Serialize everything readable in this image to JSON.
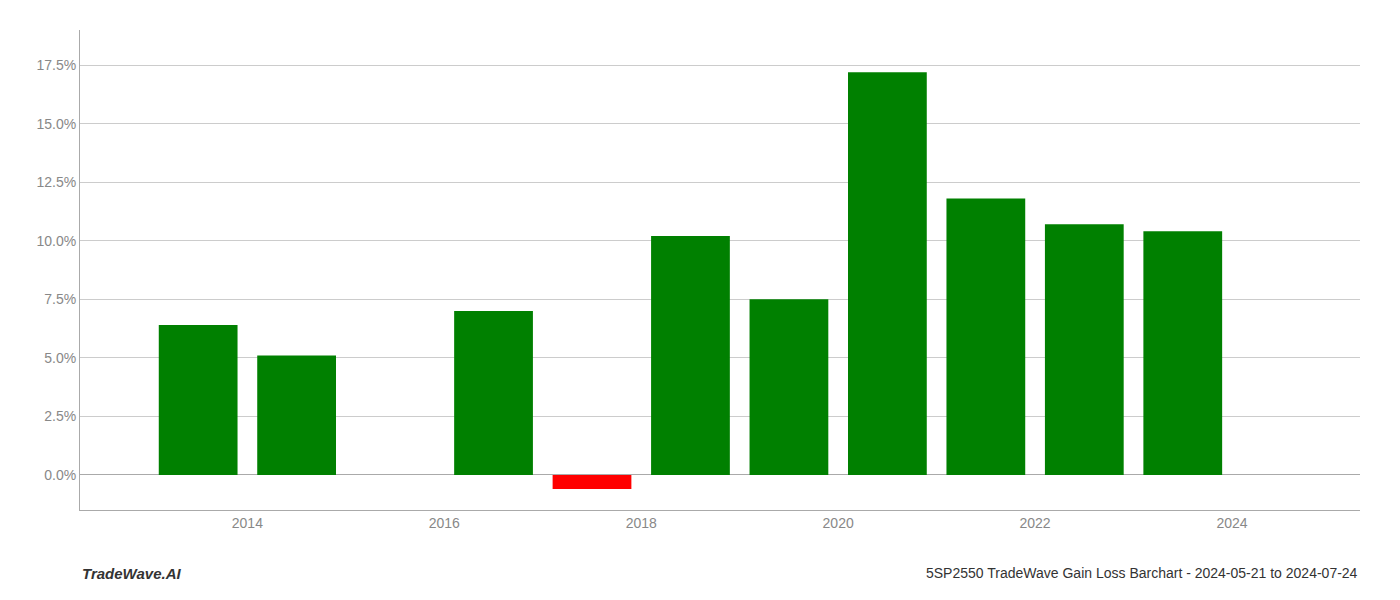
{
  "chart_data": {
    "type": "bar",
    "title": "5SP2550 TradeWave Gain Loss Barchart - 2024-05-21 to 2024-07-24",
    "annotations": [
      "TradeWave.AI"
    ],
    "x": [
      2013,
      2014,
      2016,
      2017,
      2018,
      2019,
      2020,
      2021,
      2022,
      2023
    ],
    "values": [
      0.064,
      0.051,
      0.07,
      -0.006,
      0.102,
      0.075,
      0.172,
      0.118,
      0.107,
      0.104
    ],
    "colors": [
      "#008000",
      "#008000",
      "#008000",
      "#ff0000",
      "#008000",
      "#008000",
      "#008000",
      "#008000",
      "#008000",
      "#008000"
    ],
    "xlim": [
      2011.8,
      2024.8
    ],
    "xticks": [
      {
        "value": 2013.5,
        "label": "2014"
      },
      {
        "value": 2015.5,
        "label": "2016"
      },
      {
        "value": 2017.5,
        "label": "2018"
      },
      {
        "value": 2019.5,
        "label": "2020"
      },
      {
        "value": 2021.5,
        "label": "2022"
      },
      {
        "value": 2023.5,
        "label": "2024"
      }
    ],
    "ylim": [
      -0.015,
      0.19
    ],
    "yticks": [
      {
        "value": 0.0,
        "label": "0.0%"
      },
      {
        "value": 0.025,
        "label": "2.5%"
      },
      {
        "value": 0.05,
        "label": "5.0%"
      },
      {
        "value": 0.075,
        "label": "7.5%"
      },
      {
        "value": 0.1,
        "label": "10.0%"
      },
      {
        "value": 0.125,
        "label": "12.5%"
      },
      {
        "value": 0.15,
        "label": "15.0%"
      },
      {
        "value": 0.175,
        "label": "17.5%"
      }
    ],
    "grid": true
  }
}
